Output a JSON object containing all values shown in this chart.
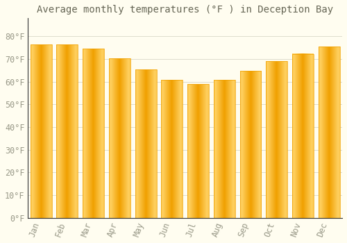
{
  "title": "Average monthly temperatures (°F ) in Deception Bay",
  "months": [
    "Jan",
    "Feb",
    "Mar",
    "Apr",
    "May",
    "Jun",
    "Jul",
    "Aug",
    "Sep",
    "Oct",
    "Nov",
    "Dec"
  ],
  "values": [
    76.5,
    76.3,
    74.7,
    70.3,
    65.3,
    60.7,
    59.0,
    60.7,
    64.7,
    69.0,
    72.3,
    75.5
  ],
  "bar_color_center": "#FFD060",
  "bar_color_edge": "#F0A000",
  "background_color": "#FFFDF0",
  "grid_color": "#DDDDCC",
  "text_color": "#999988",
  "ylim": [
    0,
    88
  ],
  "yticks": [
    0,
    10,
    20,
    30,
    40,
    50,
    60,
    70,
    80
  ],
  "ytick_labels": [
    "0°F",
    "10°F",
    "20°F",
    "30°F",
    "40°F",
    "50°F",
    "60°F",
    "70°F",
    "80°F"
  ],
  "title_fontsize": 10,
  "tick_fontsize": 8.5,
  "bar_width": 0.82
}
